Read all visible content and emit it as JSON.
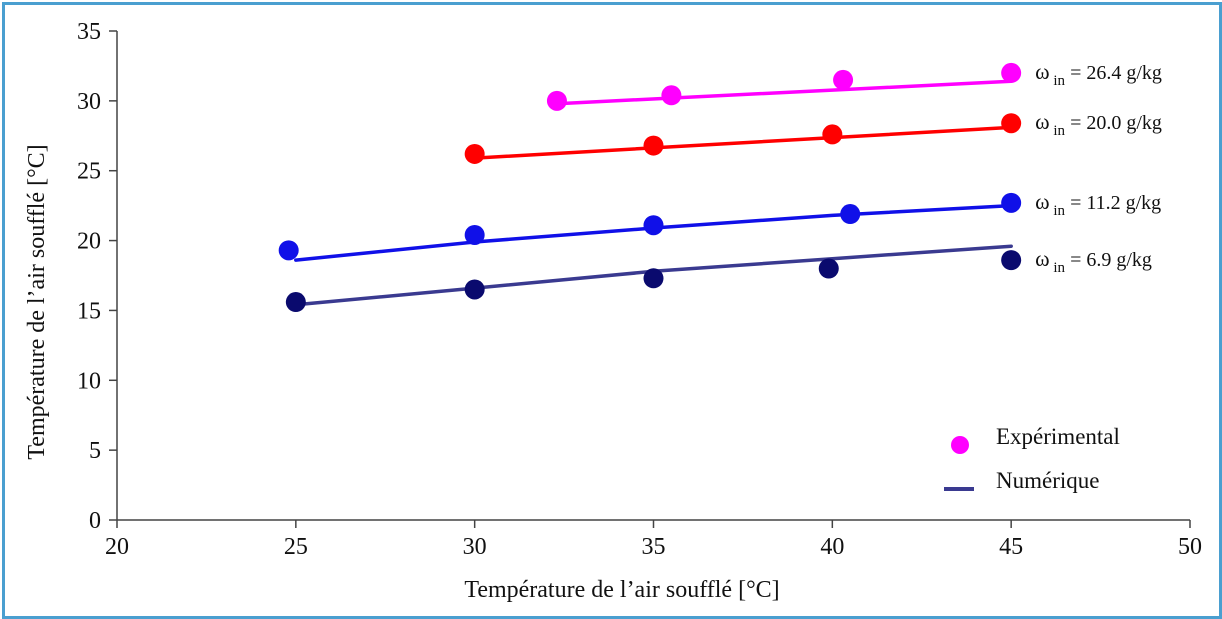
{
  "chart_data": {
    "type": "scatter",
    "xlabel": "Température de l’air soufflé [°C]",
    "ylabel": "Température de l’air soufflé [°C]",
    "xlim": [
      20,
      50
    ],
    "ylim": [
      0,
      35
    ],
    "xticks": [
      "20",
      "25",
      "30",
      "35",
      "40",
      "45",
      "50"
    ],
    "yticks": [
      "0",
      "5",
      "10",
      "15",
      "20",
      "25",
      "30",
      "35"
    ],
    "grid": false,
    "legend": {
      "placement": "bottom-right",
      "experimental_label": "Expérimental",
      "numeric_label": "Numérique"
    },
    "series": [
      {
        "omega": "ω",
        "sub": "in",
        "value_text": "= 26.4 g/kg",
        "color": "#ff00ff",
        "points": [
          [
            32.3,
            30.0
          ],
          [
            35.5,
            30.4
          ],
          [
            40.3,
            31.5
          ],
          [
            45.0,
            32.0
          ]
        ],
        "line": [
          [
            32.3,
            29.8
          ],
          [
            45.0,
            31.4
          ]
        ]
      },
      {
        "omega": "ω",
        "sub": "in",
        "value_text": "= 20.0 g/kg",
        "color": "#ff0000",
        "points": [
          [
            30.0,
            26.2
          ],
          [
            35.0,
            26.8
          ],
          [
            40.0,
            27.6
          ],
          [
            45.0,
            28.4
          ]
        ],
        "line": [
          [
            30.0,
            25.9
          ],
          [
            45.0,
            28.1
          ]
        ]
      },
      {
        "omega": "ω",
        "sub": "in",
        "value_text": "= 11.2 g/kg",
        "color": "#1010e8",
        "points": [
          [
            24.8,
            19.3
          ],
          [
            30.0,
            20.4
          ],
          [
            35.0,
            21.1
          ],
          [
            40.5,
            21.9
          ],
          [
            45.0,
            22.7
          ]
        ],
        "line": [
          [
            25.0,
            18.6
          ],
          [
            30.0,
            19.9
          ],
          [
            35.0,
            20.9
          ],
          [
            40.0,
            21.8
          ],
          [
            45.0,
            22.5
          ]
        ]
      },
      {
        "omega": "ω",
        "sub": "in",
        "value_text": "= 6.9 g/kg",
        "color": "#0a0a6e",
        "line_color": "#3a3a90",
        "points": [
          [
            25.0,
            15.6
          ],
          [
            30.0,
            16.5
          ],
          [
            35.0,
            17.3
          ],
          [
            39.9,
            18.0
          ],
          [
            45.0,
            18.6
          ]
        ],
        "line": [
          [
            25.0,
            15.4
          ],
          [
            30.0,
            16.6
          ],
          [
            35.0,
            17.8
          ],
          [
            40.0,
            18.7
          ],
          [
            45.0,
            19.6
          ]
        ]
      }
    ]
  }
}
